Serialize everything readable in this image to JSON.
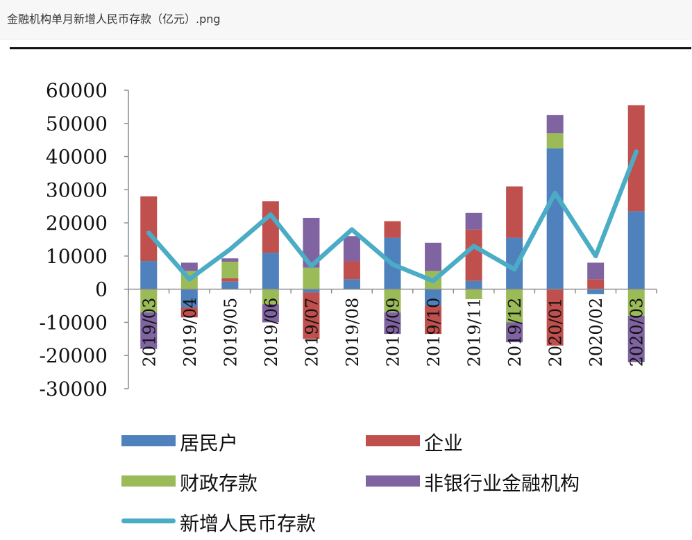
{
  "window": {
    "title": "金融机构单月新增人民币存款（亿元）.png"
  },
  "chart_data": {
    "type": "bar",
    "stacked": true,
    "categories": [
      "2019/03",
      "2019/04",
      "2019/05",
      "2019/06",
      "2019/07",
      "2019/08",
      "2019/09",
      "2019/10",
      "2019/11",
      "2019/12",
      "2020/01",
      "2020/02",
      "2020/03"
    ],
    "ylim": [
      -30000,
      60000
    ],
    "yticks": [
      60000,
      50000,
      40000,
      30000,
      20000,
      10000,
      0,
      -10000,
      -20000,
      -30000
    ],
    "ytick_labels": [
      "60000",
      "50000",
      "40000",
      "30000",
      "20000",
      "10000",
      "0",
      "-10000",
      "-20000",
      "-30000"
    ],
    "series": [
      {
        "name": "居民户",
        "kind": "bar",
        "color": "#4f81bd",
        "values": [
          8500,
          -5500,
          2300,
          11000,
          -1000,
          3000,
          15500,
          -5000,
          2500,
          15500,
          42500,
          -1500,
          23500
        ]
      },
      {
        "name": "企业",
        "kind": "bar",
        "color": "#c0504d",
        "values": [
          19500,
          -3000,
          1000,
          15500,
          -14000,
          5500,
          5000,
          -8500,
          15500,
          15500,
          -17000,
          3000,
          32000
        ]
      },
      {
        "name": "财政存款",
        "kind": "bar",
        "color": "#9bbb59",
        "values": [
          -7000,
          5500,
          5000,
          -4500,
          6500,
          0,
          -7000,
          5500,
          -3000,
          -10000,
          4500,
          0,
          -8000
        ]
      },
      {
        "name": "非银行业金融机构",
        "kind": "bar",
        "color": "#8064a2",
        "values": [
          -11000,
          2500,
          1000,
          -5500,
          15000,
          7500,
          -6500,
          8500,
          5000,
          -6000,
          5500,
          5000,
          -14000
        ]
      },
      {
        "name": "新增人民币存款",
        "kind": "line",
        "color": "#4bacc6",
        "values": [
          17000,
          3000,
          12000,
          22500,
          7000,
          18000,
          7500,
          2500,
          13000,
          6000,
          29000,
          10000,
          41500
        ]
      }
    ],
    "legend": "bottom",
    "grid": false
  }
}
